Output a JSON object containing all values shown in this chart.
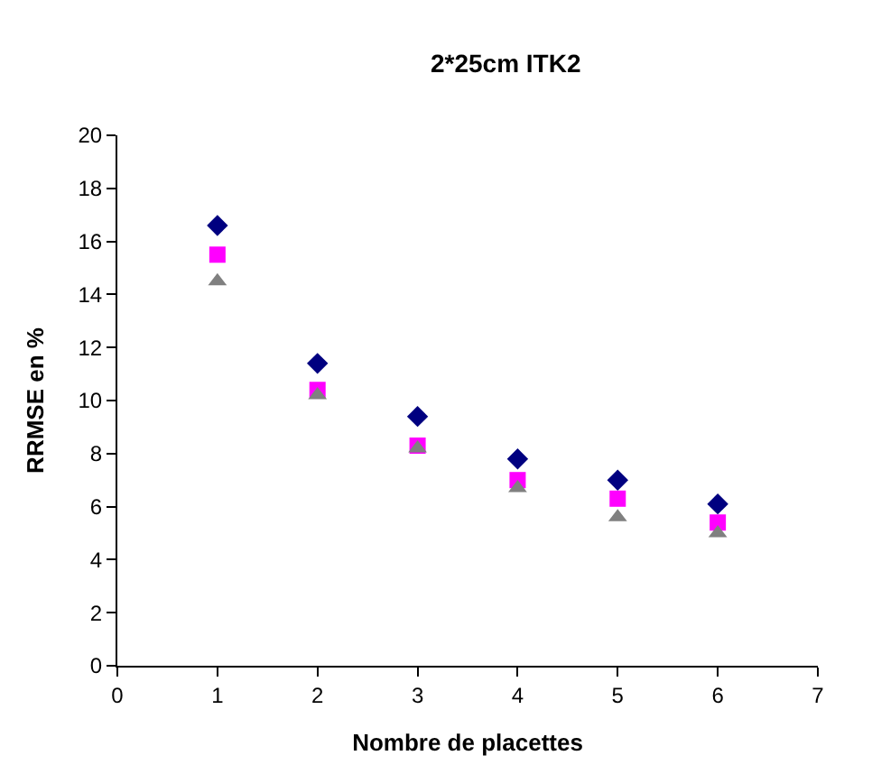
{
  "chart_data": {
    "type": "scatter",
    "title": "2*25cm ITK2",
    "xlabel": "Nombre de placettes",
    "ylabel": "RRMSE en %",
    "x": [
      1,
      2,
      3,
      4,
      5,
      6
    ],
    "series": [
      {
        "color": "#000080",
        "marker": "diamond",
        "values": [
          16.6,
          11.4,
          9.4,
          7.8,
          7.0,
          6.1
        ]
      },
      {
        "color": "#ff00ff",
        "marker": "square",
        "values": [
          15.5,
          10.4,
          8.3,
          7.0,
          6.3,
          5.4
        ]
      },
      {
        "color": "#808080",
        "marker": "triangle",
        "values": [
          14.5,
          10.2,
          8.2,
          6.7,
          5.6,
          5.0
        ]
      }
    ],
    "xlim": [
      0,
      7
    ],
    "xticks": [
      0,
      1,
      2,
      3,
      4,
      5,
      6,
      7
    ],
    "ylim": [
      0,
      20
    ],
    "yticks": [
      0,
      2,
      4,
      6,
      8,
      10,
      12,
      14,
      16,
      18,
      20
    ],
    "legend": false
  }
}
